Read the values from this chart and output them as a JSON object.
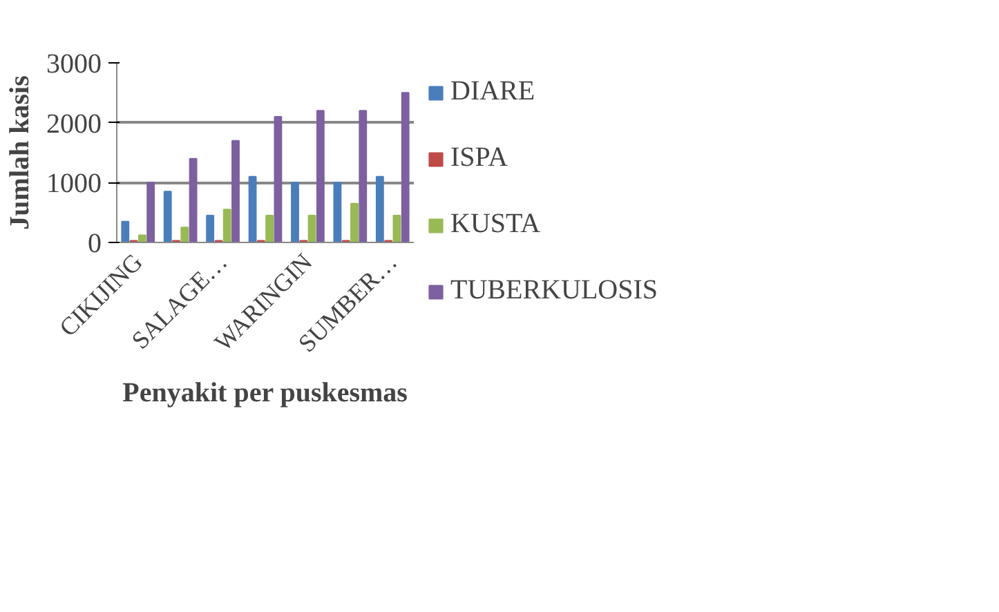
{
  "chart_data": {
    "type": "bar",
    "xlabel": "Penyakit per puskesmas",
    "ylabel": "Jumlah kasis",
    "categories": [
      "CIKIJING",
      null,
      "SALAGE…",
      null,
      "WARINGIN",
      null,
      "SUMBER…"
    ],
    "series": [
      {
        "name": "DIARE",
        "color": "#4a7ebb",
        "values": [
          350,
          850,
          450,
          1100,
          1000,
          1000,
          1100
        ]
      },
      {
        "name": "ISPA",
        "color": "#be4b48",
        "values": [
          30,
          30,
          30,
          30,
          30,
          30,
          30
        ]
      },
      {
        "name": "KUSTA",
        "color": "#98b954",
        "values": [
          120,
          250,
          550,
          450,
          450,
          650,
          450
        ]
      },
      {
        "name": "TUBERKULOSIS",
        "color": "#7d60a0",
        "values": [
          1000,
          1400,
          1700,
          2100,
          2200,
          2200,
          2500
        ]
      }
    ],
    "ylim": [
      0,
      3000
    ],
    "yticks": [
      0,
      1000,
      2000,
      3000
    ],
    "grid": "y",
    "legend": "right"
  }
}
